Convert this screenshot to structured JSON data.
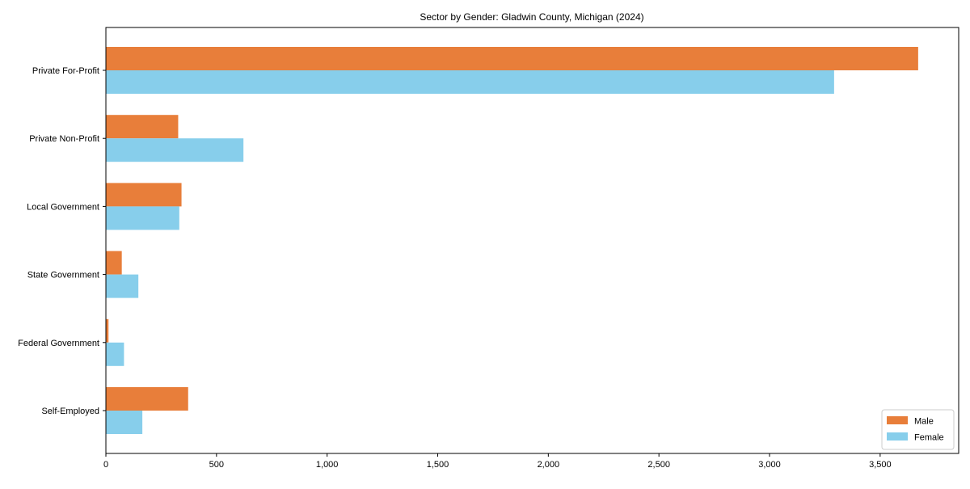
{
  "chart_data": {
    "type": "bar",
    "orientation": "horizontal",
    "title": "Sector by Gender: Gladwin County, Michigan (2024)",
    "categories": [
      "Private For-Profit",
      "Private Non-Profit",
      "Local Government",
      "State Government",
      "Federal Government",
      "Self-Employed"
    ],
    "series": [
      {
        "name": "Male",
        "color": "#E87E3A",
        "values": [
          3670,
          325,
          340,
          70,
          10,
          370
        ]
      },
      {
        "name": "Female",
        "color": "#87CEEB",
        "values": [
          3290,
          620,
          330,
          145,
          80,
          163
        ]
      }
    ],
    "xlabel": "",
    "ylabel": "",
    "xlim": [
      0,
      3855
    ],
    "xticks": [
      0,
      500,
      1000,
      1500,
      2000,
      2500,
      3000,
      3500
    ],
    "xtick_labels": [
      "0",
      "500",
      "1,000",
      "1,500",
      "2,000",
      "2,500",
      "3,000",
      "3,500"
    ],
    "grid": false,
    "background": "#ffffff",
    "frame_color": "#000000",
    "legend": {
      "position": "lower right",
      "entries": [
        {
          "label": "Male",
          "color": "#E87E3A"
        },
        {
          "label": "Female",
          "color": "#87CEEB"
        }
      ],
      "border_color": "#cccccc"
    }
  }
}
